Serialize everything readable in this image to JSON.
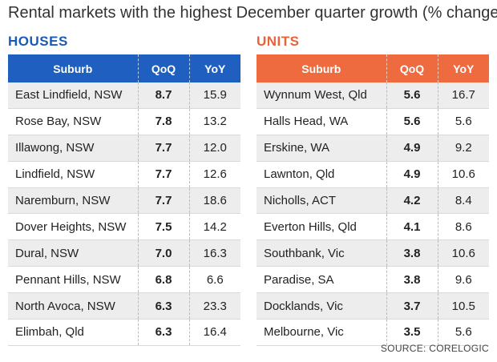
{
  "title": "Rental markets with the highest December quarter growth (% change)",
  "source": "SOURCE: CORELOGIC",
  "houses": {
    "label": "HOUSES",
    "color": "#1f5fbf",
    "headers": [
      "Suburb",
      "QoQ",
      "YoY"
    ],
    "rows": [
      {
        "suburb": "East Lindfield, NSW",
        "qoq": "8.7",
        "yoy": "15.9"
      },
      {
        "suburb": "Rose Bay, NSW",
        "qoq": "7.8",
        "yoy": "13.2"
      },
      {
        "suburb": "Illawong, NSW",
        "qoq": "7.7",
        "yoy": "12.0"
      },
      {
        "suburb": "Lindfield, NSW",
        "qoq": "7.7",
        "yoy": "12.6"
      },
      {
        "suburb": "Naremburn, NSW",
        "qoq": "7.7",
        "yoy": "18.6"
      },
      {
        "suburb": "Dover Heights, NSW",
        "qoq": "7.5",
        "yoy": "14.2"
      },
      {
        "suburb": "Dural, NSW",
        "qoq": "7.0",
        "yoy": "16.3"
      },
      {
        "suburb": "Pennant Hills, NSW",
        "qoq": "6.8",
        "yoy": "6.6"
      },
      {
        "suburb": "North Avoca, NSW",
        "qoq": "6.3",
        "yoy": "23.3"
      },
      {
        "suburb": "Elimbah, Qld",
        "qoq": "6.3",
        "yoy": "16.4"
      }
    ]
  },
  "units": {
    "label": "UNITS",
    "color": "#ee6a3f",
    "headers": [
      "Suburb",
      "QoQ",
      "YoY"
    ],
    "rows": [
      {
        "suburb": "Wynnum West, Qld",
        "qoq": "5.6",
        "yoy": "16.7"
      },
      {
        "suburb": "Halls Head, WA",
        "qoq": "5.6",
        "yoy": "5.6"
      },
      {
        "suburb": "Erskine, WA",
        "qoq": "4.9",
        "yoy": "9.2"
      },
      {
        "suburb": "Lawnton, Qld",
        "qoq": "4.9",
        "yoy": "10.6"
      },
      {
        "suburb": "Nicholls, ACT",
        "qoq": "4.2",
        "yoy": "8.4"
      },
      {
        "suburb": "Everton Hills, Qld",
        "qoq": "4.1",
        "yoy": "8.6"
      },
      {
        "suburb": "Southbank, Vic",
        "qoq": "3.8",
        "yoy": "10.6"
      },
      {
        "suburb": "Paradise, SA",
        "qoq": "3.8",
        "yoy": "9.6"
      },
      {
        "suburb": "Docklands, Vic",
        "qoq": "3.7",
        "yoy": "10.5"
      },
      {
        "suburb": "Melbourne, Vic",
        "qoq": "3.5",
        "yoy": "5.6"
      }
    ]
  }
}
